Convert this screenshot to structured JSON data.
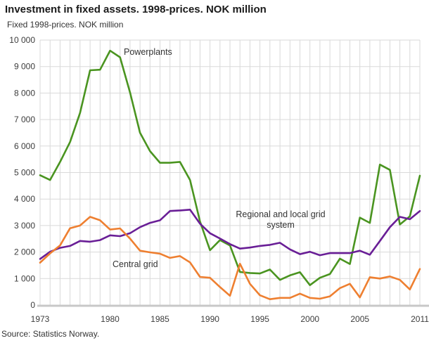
{
  "header": {
    "title": "Investment in fixed assets. 1998-prices. NOK million",
    "subtitle": "Fixed 1998-prices. NOK million"
  },
  "source": "Source: Statistics Norway.",
  "chart_data": {
    "type": "line",
    "title": "Investment in fixed assets. 1998-prices. NOK million",
    "ylabel": "Fixed 1998-prices. NOK million",
    "xlabel": "",
    "grid": true,
    "legend_position": "inline-annotations",
    "ylim": [
      0,
      10000
    ],
    "y_tick_step": 1000,
    "y_tick_labels": [
      "0",
      "1 000",
      "2 000",
      "3 000",
      "4 000",
      "5 000",
      "6 000",
      "7 000",
      "8 000",
      "9 000",
      "10 000"
    ],
    "x_tick_labels": [
      "1973",
      "1980",
      "1985",
      "1990",
      "1995",
      "2000",
      "2005",
      "2011"
    ],
    "years": [
      1973,
      1974,
      1975,
      1976,
      1977,
      1978,
      1979,
      1980,
      1981,
      1982,
      1983,
      1984,
      1985,
      1986,
      1987,
      1988,
      1989,
      1990,
      1991,
      1992,
      1993,
      1994,
      1995,
      1996,
      1997,
      1998,
      1999,
      2000,
      2001,
      2002,
      2003,
      2004,
      2005,
      2006,
      2007,
      2008,
      2009,
      2010,
      2011
    ],
    "series": [
      {
        "id": "powerplants-line",
        "name": "Powerplants",
        "color": "#4a9420",
        "values": [
          4900,
          4720,
          5400,
          6150,
          7250,
          8860,
          8880,
          9600,
          9350,
          8020,
          6500,
          5810,
          5370,
          5370,
          5400,
          4720,
          3150,
          2070,
          2450,
          2250,
          1250,
          1210,
          1190,
          1340,
          950,
          1120,
          1240,
          750,
          1030,
          1170,
          1750,
          1550,
          3300,
          3100,
          5300,
          5100,
          3040,
          3350,
          4880
        ]
      },
      {
        "id": "regional-grid-line",
        "name": "Regional and local grid system",
        "color": "#691e96",
        "values": [
          1740,
          2010,
          2160,
          2230,
          2420,
          2390,
          2450,
          2630,
          2600,
          2710,
          2940,
          3100,
          3200,
          3550,
          3570,
          3600,
          3070,
          2710,
          2510,
          2300,
          2130,
          2170,
          2230,
          2270,
          2350,
          2100,
          1920,
          2010,
          1880,
          1960,
          1960,
          1960,
          2050,
          1900,
          2420,
          2940,
          3330,
          3240,
          3550
        ]
      },
      {
        "id": "central-grid-line",
        "name": "Central grid",
        "color": "#ee7f30",
        "values": [
          1600,
          1950,
          2250,
          2900,
          3000,
          3330,
          3200,
          2850,
          2890,
          2510,
          2050,
          1990,
          1940,
          1780,
          1850,
          1610,
          1060,
          1030,
          680,
          350,
          1560,
          800,
          370,
          220,
          270,
          270,
          430,
          270,
          240,
          330,
          640,
          800,
          290,
          1050,
          1000,
          1080,
          950,
          590,
          1360
        ]
      }
    ],
    "colors": {
      "grid": "#d9d9d9",
      "axis": "#c8c8c8",
      "tick_text": "#3c3c3c"
    }
  }
}
